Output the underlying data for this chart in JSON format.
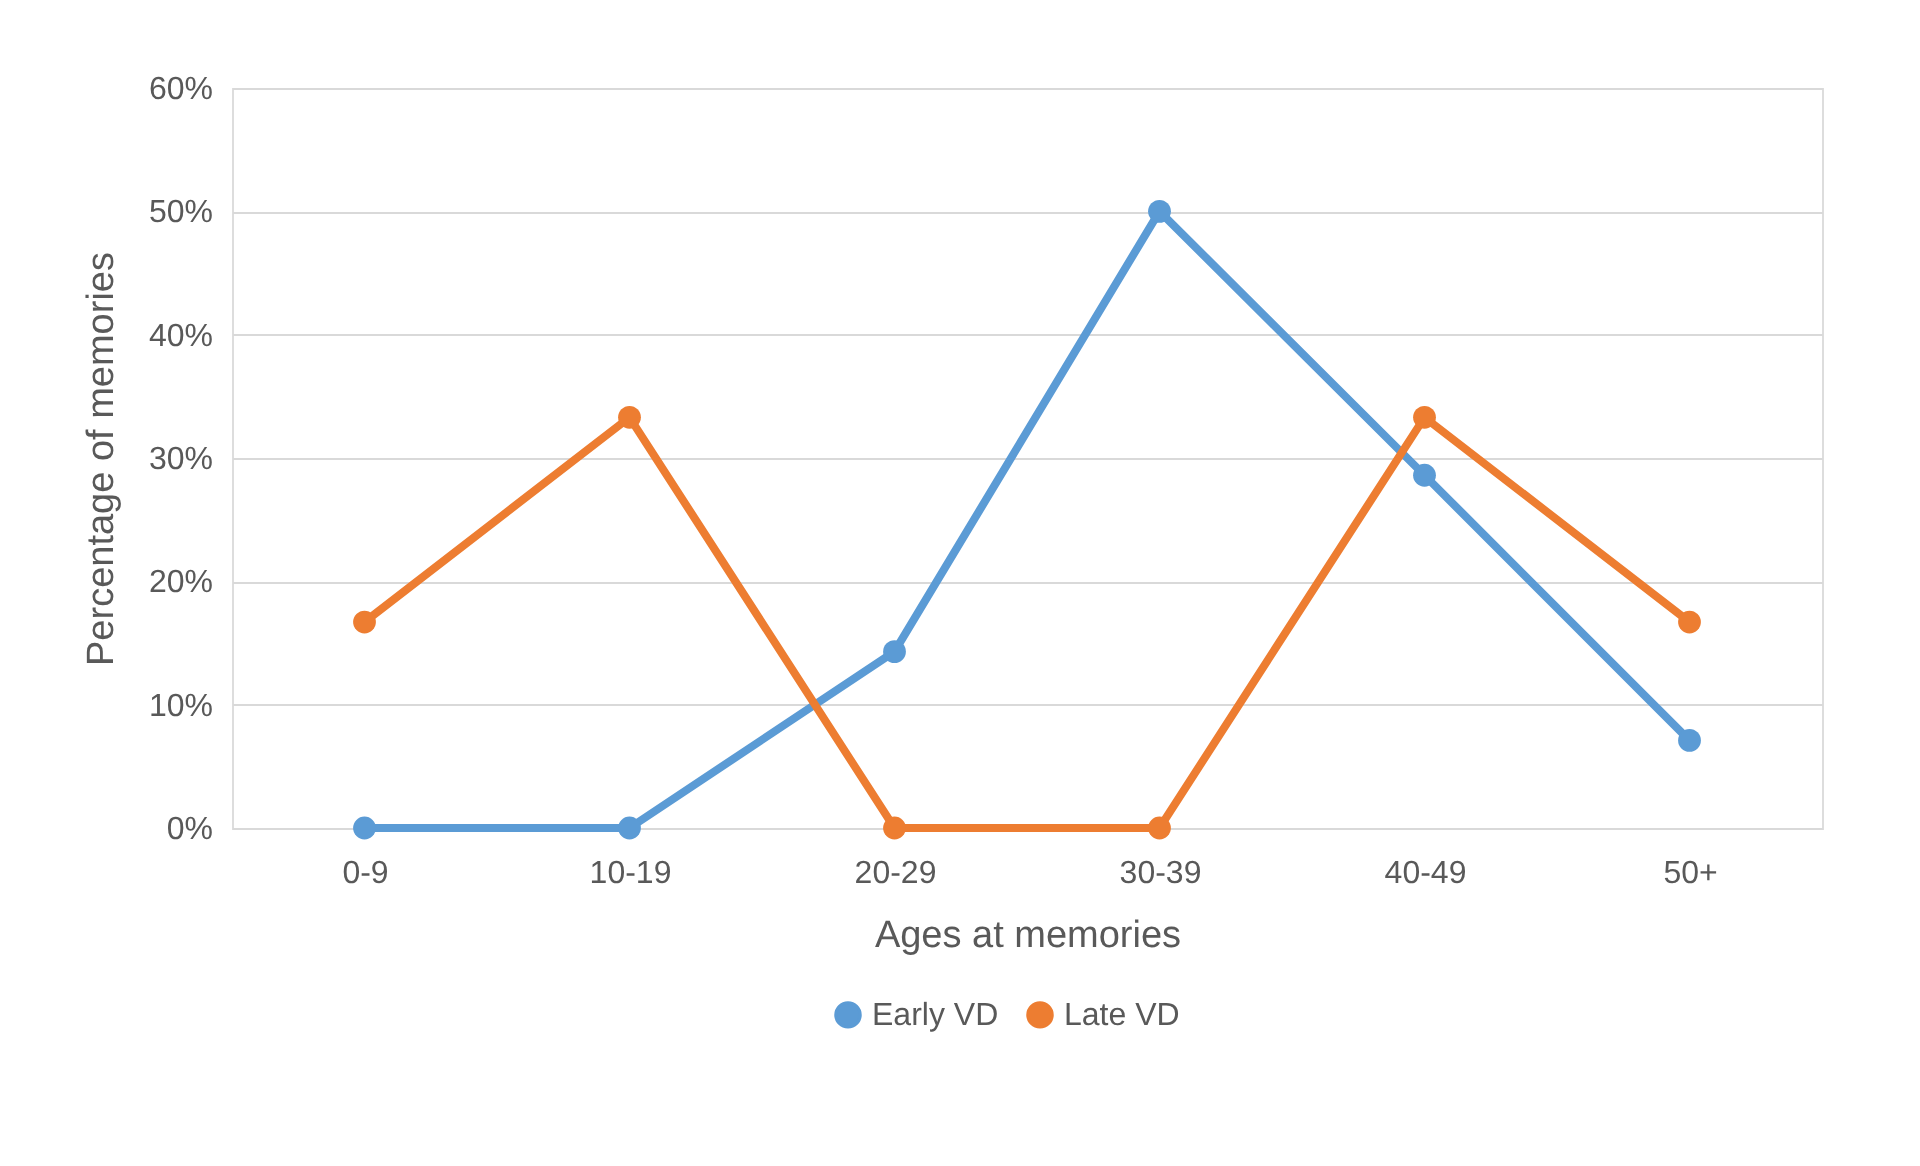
{
  "chart_data": {
    "type": "line",
    "xlabel": "Ages at memories",
    "ylabel": "Percentage of memories",
    "categories": [
      "0-9",
      "10-19",
      "20-29",
      "30-39",
      "40-49",
      "50+"
    ],
    "series": [
      {
        "name": "Early VD",
        "color": "#5b9bd5",
        "values": [
          0,
          0,
          14.3,
          50,
          28.6,
          7.1
        ]
      },
      {
        "name": "Late VD",
        "color": "#ed7d31",
        "values": [
          16.7,
          33.3,
          0,
          0,
          33.3,
          16.7
        ]
      }
    ],
    "ylim": [
      0,
      60
    ],
    "yticks": [
      {
        "value": 0,
        "label": "0%"
      },
      {
        "value": 10,
        "label": "10%"
      },
      {
        "value": 20,
        "label": "20%"
      },
      {
        "value": 30,
        "label": "30%"
      },
      {
        "value": 40,
        "label": "40%"
      },
      {
        "value": 50,
        "label": "50%"
      },
      {
        "value": 60,
        "label": "60%"
      }
    ],
    "grid": "y",
    "legend": "bottom",
    "marker": "circle",
    "line_style": "solid"
  }
}
